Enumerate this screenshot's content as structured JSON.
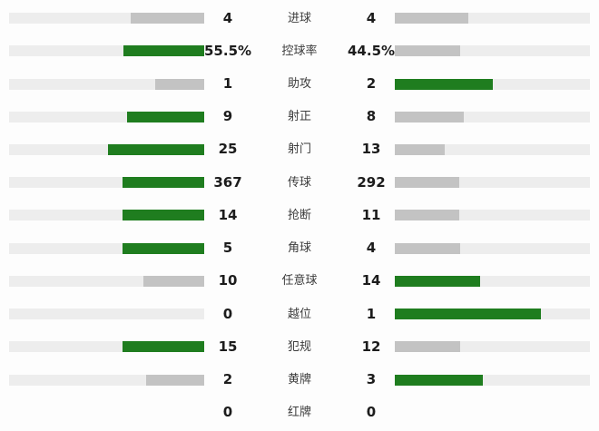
{
  "colors": {
    "leader_bar": "#1f7d1f",
    "trailer_bar": "#c3c3c3",
    "track": "#ededed"
  },
  "rows": [
    {
      "label": "进球",
      "home": "4",
      "away": "4",
      "home_val": 4,
      "away_val": 4
    },
    {
      "label": "控球率",
      "home": "55.5%",
      "away": "44.5%",
      "home_val": 55.5,
      "away_val": 44.5
    },
    {
      "label": "助攻",
      "home": "1",
      "away": "2",
      "home_val": 1,
      "away_val": 2
    },
    {
      "label": "射正",
      "home": "9",
      "away": "8",
      "home_val": 9,
      "away_val": 8
    },
    {
      "label": "射门",
      "home": "25",
      "away": "13",
      "home_val": 25,
      "away_val": 13
    },
    {
      "label": "传球",
      "home": "367",
      "away": "292",
      "home_val": 367,
      "away_val": 292
    },
    {
      "label": "抢断",
      "home": "14",
      "away": "11",
      "home_val": 14,
      "away_val": 11
    },
    {
      "label": "角球",
      "home": "5",
      "away": "4",
      "home_val": 5,
      "away_val": 4
    },
    {
      "label": "任意球",
      "home": "10",
      "away": "14",
      "home_val": 10,
      "away_val": 14
    },
    {
      "label": "越位",
      "home": "0",
      "away": "1",
      "home_val": 0,
      "away_val": 1
    },
    {
      "label": "犯规",
      "home": "15",
      "away": "12",
      "home_val": 15,
      "away_val": 12
    },
    {
      "label": "黄牌",
      "home": "2",
      "away": "3",
      "home_val": 2,
      "away_val": 3
    },
    {
      "label": "红牌",
      "home": "0",
      "away": "0",
      "home_val": 0,
      "away_val": 0
    }
  ],
  "chart_data": {
    "type": "bar",
    "orientation": "horizontal-mirrored",
    "title": "",
    "xlabel": "",
    "ylabel": "",
    "legend_position": "none",
    "grid": false,
    "categories": [
      "进球",
      "控球率",
      "助攻",
      "射正",
      "射门",
      "传球",
      "抢断",
      "角球",
      "任意球",
      "越位",
      "犯规",
      "黄牌",
      "红牌"
    ],
    "series": [
      {
        "name": "home",
        "values": [
          4,
          55.5,
          1,
          9,
          25,
          367,
          14,
          5,
          10,
          0,
          15,
          2,
          0
        ]
      },
      {
        "name": "away",
        "values": [
          4,
          44.5,
          2,
          8,
          13,
          292,
          11,
          4,
          14,
          1,
          12,
          3,
          0
        ]
      }
    ],
    "value_labels": {
      "home": [
        "4",
        "55.5%",
        "1",
        "9",
        "25",
        "367",
        "14",
        "5",
        "10",
        "0",
        "15",
        "2",
        "0"
      ],
      "away": [
        "4",
        "44.5%",
        "2",
        "8",
        "13",
        "292",
        "11",
        "4",
        "14",
        "1",
        "12",
        "3",
        "0"
      ]
    },
    "encoding_note": "Each row scaled independently: bar width = value / (home+away); side with larger value drawn in green, smaller in gray; ties both gray; 0-0 rows show no bars"
  }
}
